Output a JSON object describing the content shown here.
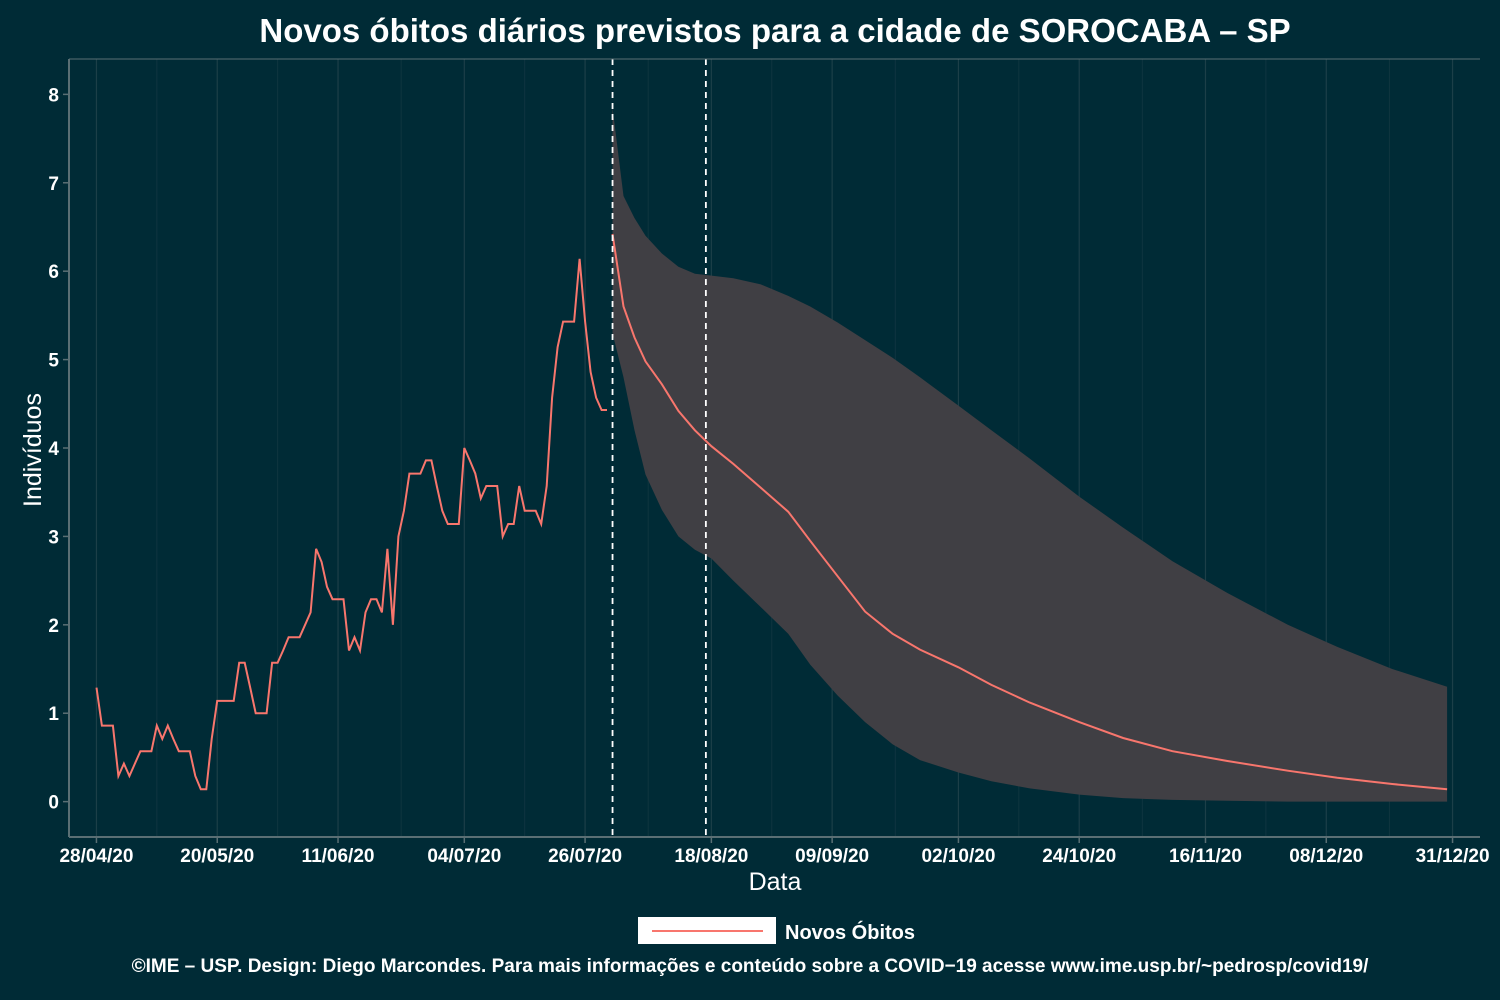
{
  "title": "Novos óbitos diários previstos para a cidade de SOROCABA – SP",
  "footer": "©IME – USP. Design: Diego Marcondes. Para mais informações e conteúdo sobre a COVID−19 acesse www.ime.usp.br/~pedrosp/covid19/",
  "colors": {
    "background": "#002b36",
    "line": "#f8766d",
    "band": "#403f44",
    "grid_major": "#1c3f48",
    "grid_minor": "#0f3540",
    "axis": "#5a6f74",
    "text": "#ffffff",
    "vline": "#ffffff"
  },
  "chart_data": {
    "type": "line",
    "xlabel": "Data",
    "ylabel": "Indivíduos",
    "xlim": [
      "2020-04-23",
      "2021-01-05"
    ],
    "ylim": [
      -0.4,
      8.4
    ],
    "x_ticks": [
      "28/04/20",
      "20/05/20",
      "11/06/20",
      "04/07/20",
      "26/07/20",
      "18/08/20",
      "09/09/20",
      "02/10/20",
      "24/10/20",
      "16/11/20",
      "08/12/20",
      "31/12/20"
    ],
    "x_tick_dates": [
      "2020-04-28",
      "2020-05-20",
      "2020-06-11",
      "2020-07-04",
      "2020-07-26",
      "2020-08-18",
      "2020-09-09",
      "2020-10-02",
      "2020-10-24",
      "2020-11-16",
      "2020-12-08",
      "2020-12-31"
    ],
    "y_ticks": [
      0,
      1,
      2,
      3,
      4,
      5,
      6,
      7,
      8
    ],
    "grid": true,
    "legend_position": "bottom",
    "legend": [
      {
        "label": "Novos Óbitos",
        "color": "#f8766d"
      }
    ],
    "vertical_lines": [
      "2020-07-31",
      "2020-08-17"
    ],
    "observed": {
      "x": [
        "2020-04-28",
        "2020-04-29",
        "2020-04-30",
        "2020-05-01",
        "2020-05-02",
        "2020-05-03",
        "2020-05-04",
        "2020-05-05",
        "2020-05-06",
        "2020-05-07",
        "2020-05-08",
        "2020-05-09",
        "2020-05-10",
        "2020-05-11",
        "2020-05-12",
        "2020-05-13",
        "2020-05-14",
        "2020-05-15",
        "2020-05-16",
        "2020-05-17",
        "2020-05-18",
        "2020-05-19",
        "2020-05-20",
        "2020-05-21",
        "2020-05-22",
        "2020-05-23",
        "2020-05-24",
        "2020-05-25",
        "2020-05-26",
        "2020-05-27",
        "2020-05-28",
        "2020-05-29",
        "2020-05-30",
        "2020-05-31",
        "2020-06-01",
        "2020-06-02",
        "2020-06-03",
        "2020-06-04",
        "2020-06-05",
        "2020-06-06",
        "2020-06-07",
        "2020-06-08",
        "2020-06-09",
        "2020-06-10",
        "2020-06-11",
        "2020-06-12",
        "2020-06-13",
        "2020-06-14",
        "2020-06-15",
        "2020-06-16",
        "2020-06-17",
        "2020-06-18",
        "2020-06-19",
        "2020-06-20",
        "2020-06-21",
        "2020-06-22",
        "2020-06-23",
        "2020-06-24",
        "2020-06-25",
        "2020-06-26",
        "2020-06-27",
        "2020-06-28",
        "2020-06-29",
        "2020-06-30",
        "2020-07-01",
        "2020-07-02",
        "2020-07-03",
        "2020-07-04",
        "2020-07-05",
        "2020-07-06",
        "2020-07-07",
        "2020-07-08",
        "2020-07-09",
        "2020-07-10",
        "2020-07-11",
        "2020-07-12",
        "2020-07-13",
        "2020-07-14",
        "2020-07-15",
        "2020-07-16",
        "2020-07-17",
        "2020-07-18",
        "2020-07-19",
        "2020-07-20",
        "2020-07-21",
        "2020-07-22",
        "2020-07-23",
        "2020-07-24",
        "2020-07-25",
        "2020-07-26",
        "2020-07-27",
        "2020-07-28",
        "2020-07-29",
        "2020-07-30"
      ],
      "y": [
        1.29,
        0.86,
        0.86,
        0.86,
        0.29,
        0.43,
        0.29,
        0.43,
        0.57,
        0.57,
        0.57,
        0.86,
        0.71,
        0.86,
        0.71,
        0.57,
        0.57,
        0.57,
        0.29,
        0.14,
        0.14,
        0.71,
        1.14,
        1.14,
        1.14,
        1.14,
        1.57,
        1.57,
        1.29,
        1.0,
        1.0,
        1.0,
        1.57,
        1.57,
        1.71,
        1.86,
        1.86,
        1.86,
        2.0,
        2.14,
        2.86,
        2.71,
        2.43,
        2.29,
        2.29,
        2.29,
        1.71,
        1.86,
        1.71,
        2.14,
        2.29,
        2.29,
        2.14,
        2.86,
        2.0,
        3.0,
        3.29,
        3.71,
        3.71,
        3.71,
        3.86,
        3.86,
        3.57,
        3.29,
        3.14,
        3.14,
        3.14,
        4.0,
        3.86,
        3.71,
        3.43,
        3.57,
        3.57,
        3.57,
        3.0,
        3.14,
        3.14,
        3.57,
        3.29,
        3.29,
        3.29,
        3.14,
        3.57,
        4.57,
        5.14,
        5.43,
        5.43,
        5.43,
        6.14,
        5.43,
        4.86,
        4.57,
        4.43,
        4.43
      ]
    },
    "forecast": {
      "x": [
        "2020-07-31",
        "2020-08-02",
        "2020-08-04",
        "2020-08-06",
        "2020-08-09",
        "2020-08-12",
        "2020-08-15",
        "2020-08-18",
        "2020-08-22",
        "2020-08-27",
        "2020-09-01",
        "2020-09-05",
        "2020-09-10",
        "2020-09-15",
        "2020-09-20",
        "2020-09-25",
        "2020-10-02",
        "2020-10-08",
        "2020-10-15",
        "2020-10-24",
        "2020-11-01",
        "2020-11-10",
        "2020-11-20",
        "2020-12-01",
        "2020-12-10",
        "2020-12-20",
        "2020-12-30"
      ],
      "mean": [
        6.42,
        5.6,
        5.25,
        4.98,
        4.72,
        4.42,
        4.2,
        4.02,
        3.82,
        3.55,
        3.28,
        2.95,
        2.55,
        2.15,
        1.9,
        1.72,
        1.52,
        1.32,
        1.12,
        0.9,
        0.72,
        0.57,
        0.46,
        0.35,
        0.27,
        0.2,
        0.14
      ],
      "lower": [
        5.3,
        4.8,
        4.2,
        3.7,
        3.3,
        3.0,
        2.85,
        2.75,
        2.5,
        2.2,
        1.9,
        1.55,
        1.2,
        0.9,
        0.65,
        0.47,
        0.33,
        0.23,
        0.15,
        0.08,
        0.04,
        0.02,
        0.01,
        0.0,
        0.0,
        0.0,
        0.0
      ],
      "upper": [
        7.85,
        6.85,
        6.6,
        6.4,
        6.2,
        6.05,
        5.97,
        5.95,
        5.92,
        5.85,
        5.72,
        5.6,
        5.42,
        5.22,
        5.02,
        4.8,
        4.48,
        4.2,
        3.88,
        3.45,
        3.1,
        2.72,
        2.36,
        2.0,
        1.75,
        1.5,
        1.3
      ]
    }
  }
}
